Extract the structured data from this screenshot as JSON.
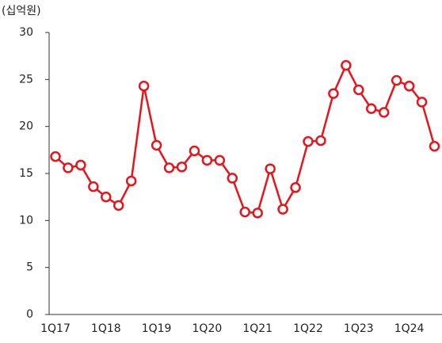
{
  "chart_data": {
    "type": "line",
    "ylabel": "(십억원)",
    "categories": [
      "1Q17",
      null,
      null,
      null,
      "1Q18",
      null,
      null,
      null,
      "1Q19",
      null,
      null,
      null,
      "1Q20",
      null,
      null,
      null,
      "1Q21",
      null,
      null,
      null,
      "1Q22",
      null,
      null,
      null,
      "1Q23",
      null,
      null,
      null,
      "1Q24",
      null,
      null
    ],
    "series": [
      {
        "color": "#e8141c",
        "values": [
          16.8,
          15.6,
          15.9,
          13.6,
          12.5,
          11.6,
          14.2,
          24.3,
          18.0,
          15.6,
          15.7,
          17.4,
          16.4,
          16.4,
          14.5,
          10.9,
          10.8,
          15.5,
          11.2,
          13.5,
          18.4,
          18.5,
          23.5,
          26.5,
          23.9,
          21.9,
          21.5,
          24.9,
          24.3,
          22.6,
          17.9
        ]
      }
    ],
    "ylim": [
      0,
      30
    ],
    "yticks": [
      0,
      5,
      10,
      15,
      20,
      25,
      30
    ],
    "grid": false
  }
}
